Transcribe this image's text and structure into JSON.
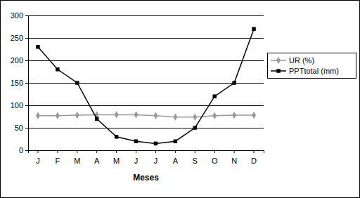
{
  "chart_data": {
    "type": "line",
    "x_label": "Meses",
    "categories": [
      "J",
      "F",
      "M",
      "A",
      "M",
      "J",
      "J",
      "A",
      "S",
      "O",
      "N",
      "D"
    ],
    "series": [
      {
        "name": "UR (%)",
        "color": "#999999",
        "marker": "diamond",
        "values": [
          77,
          77,
          78,
          79,
          79,
          79,
          77,
          74,
          74,
          77,
          78,
          78
        ]
      },
      {
        "name": "PPTtotal (mm)",
        "color": "#000000",
        "marker": "square",
        "values": [
          230,
          180,
          150,
          70,
          30,
          20,
          15,
          20,
          50,
          120,
          150,
          270
        ]
      }
    ],
    "ylim": [
      0,
      300
    ],
    "yticks": [
      0,
      50,
      100,
      150,
      200,
      250,
      300
    ],
    "grid": true,
    "legend": "right"
  }
}
